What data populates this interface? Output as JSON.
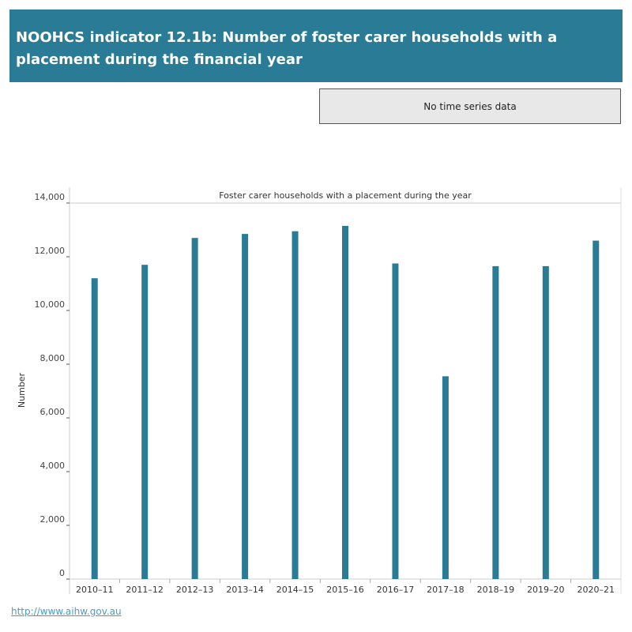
{
  "header": {
    "title": "NOOHCS indicator 12.1b: Number of foster carer households with a placement during the financial year"
  },
  "notice": {
    "text": "No time series data"
  },
  "footer": {
    "link": "http://www.aihw.gov.au"
  },
  "chart_data": {
    "type": "bar",
    "title": "Foster carer households with a placement during the year",
    "ylabel": "Number",
    "xlabel": "",
    "ylim": [
      0,
      14000
    ],
    "yticks": [
      0,
      2000,
      4000,
      6000,
      8000,
      10000,
      12000,
      14000
    ],
    "ytick_labels": [
      "0",
      "2,000",
      "4,000",
      "6,000",
      "8,000",
      "10,000",
      "12,000",
      "14,000"
    ],
    "categories": [
      "2010–11",
      "2011–12",
      "2012–13",
      "2013–14",
      "2014–15",
      "2015–16",
      "2016–17",
      "2017–18",
      "2018–19",
      "2019–20",
      "2020–21"
    ],
    "values": [
      11200,
      11700,
      12700,
      12850,
      12950,
      13150,
      11750,
      7550,
      11650,
      11650,
      12600
    ],
    "bar_color": "#2a7b96",
    "grid": false
  }
}
